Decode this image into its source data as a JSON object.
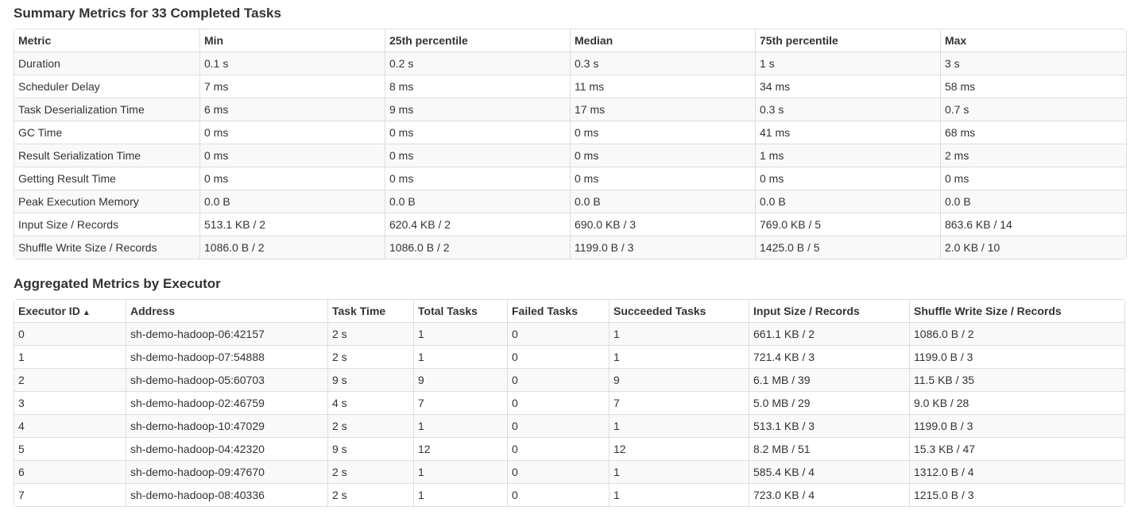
{
  "summary": {
    "title": "Summary Metrics for 33 Completed Tasks",
    "headers": [
      "Metric",
      "Min",
      "25th percentile",
      "Median",
      "75th percentile",
      "Max"
    ],
    "rows": [
      [
        "Duration",
        "0.1 s",
        "0.2 s",
        "0.3 s",
        "1 s",
        "3 s"
      ],
      [
        "Scheduler Delay",
        "7 ms",
        "8 ms",
        "11 ms",
        "34 ms",
        "58 ms"
      ],
      [
        "Task Deserialization Time",
        "6 ms",
        "9 ms",
        "17 ms",
        "0.3 s",
        "0.7 s"
      ],
      [
        "GC Time",
        "0 ms",
        "0 ms",
        "0 ms",
        "41 ms",
        "68 ms"
      ],
      [
        "Result Serialization Time",
        "0 ms",
        "0 ms",
        "0 ms",
        "1 ms",
        "2 ms"
      ],
      [
        "Getting Result Time",
        "0 ms",
        "0 ms",
        "0 ms",
        "0 ms",
        "0 ms"
      ],
      [
        "Peak Execution Memory",
        "0.0 B",
        "0.0 B",
        "0.0 B",
        "0.0 B",
        "0.0 B"
      ],
      [
        "Input Size / Records",
        "513.1 KB / 2",
        "620.4 KB / 2",
        "690.0 KB / 3",
        "769.0 KB / 5",
        "863.6 KB / 14"
      ],
      [
        "Shuffle Write Size / Records",
        "1086.0 B / 2",
        "1086.0 B / 2",
        "1199.0 B / 3",
        "1425.0 B / 5",
        "2.0 KB / 10"
      ]
    ]
  },
  "executors": {
    "title": "Aggregated Metrics by Executor",
    "headers": [
      "Executor ID",
      "Address",
      "Task Time",
      "Total Tasks",
      "Failed Tasks",
      "Succeeded Tasks",
      "Input Size / Records",
      "Shuffle Write Size / Records"
    ],
    "sort_indicator": "▲",
    "rows": [
      [
        "0",
        "sh-demo-hadoop-06:42157",
        "2 s",
        "1",
        "0",
        "1",
        "661.1 KB / 2",
        "1086.0 B / 2"
      ],
      [
        "1",
        "sh-demo-hadoop-07:54888",
        "2 s",
        "1",
        "0",
        "1",
        "721.4 KB / 3",
        "1199.0 B / 3"
      ],
      [
        "2",
        "sh-demo-hadoop-05:60703",
        "9 s",
        "9",
        "0",
        "9",
        "6.1 MB / 39",
        "11.5 KB / 35"
      ],
      [
        "3",
        "sh-demo-hadoop-02:46759",
        "4 s",
        "7",
        "0",
        "7",
        "5.0 MB / 29",
        "9.0 KB / 28"
      ],
      [
        "4",
        "sh-demo-hadoop-10:47029",
        "2 s",
        "1",
        "0",
        "1",
        "513.1 KB / 3",
        "1199.0 B / 3"
      ],
      [
        "5",
        "sh-demo-hadoop-04:42320",
        "9 s",
        "12",
        "0",
        "12",
        "8.2 MB / 51",
        "15.3 KB / 47"
      ],
      [
        "6",
        "sh-demo-hadoop-09:47670",
        "2 s",
        "1",
        "0",
        "1",
        "585.4 KB / 4",
        "1312.0 B / 4"
      ],
      [
        "7",
        "sh-demo-hadoop-08:40336",
        "2 s",
        "1",
        "0",
        "1",
        "723.0 KB / 4",
        "1215.0 B / 3"
      ]
    ]
  }
}
